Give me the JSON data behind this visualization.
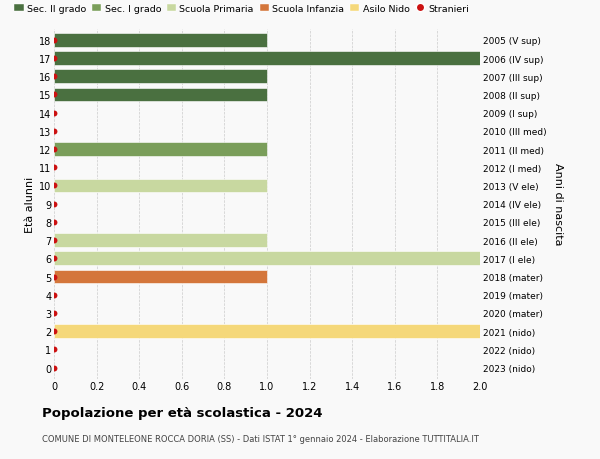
{
  "ages": [
    0,
    1,
    2,
    3,
    4,
    5,
    6,
    7,
    8,
    9,
    10,
    11,
    12,
    13,
    14,
    15,
    16,
    17,
    18
  ],
  "bar_values": [
    0,
    0,
    2,
    0,
    0,
    1,
    2,
    1,
    0,
    0,
    1,
    0,
    1,
    0,
    0,
    1,
    1,
    2,
    1
  ],
  "bar_colors": [
    "#ffffff",
    "#ffffff",
    "#f5d87a",
    "#ffffff",
    "#ffffff",
    "#d4763b",
    "#c8d8a0",
    "#c8d8a0",
    "#ffffff",
    "#ffffff",
    "#c8d8a0",
    "#ffffff",
    "#7a9e5a",
    "#ffffff",
    "#ffffff",
    "#4a7040",
    "#4a7040",
    "#4a7040",
    "#4a7040"
  ],
  "stranieri_dots": [
    0,
    1,
    2,
    3,
    4,
    5,
    6,
    7,
    8,
    9,
    10,
    11,
    12,
    13,
    14,
    15,
    16,
    17,
    18
  ],
  "right_labels": [
    "2023 (nido)",
    "2022 (nido)",
    "2021 (nido)",
    "2020 (mater)",
    "2019 (mater)",
    "2018 (mater)",
    "2017 (I ele)",
    "2016 (II ele)",
    "2015 (III ele)",
    "2014 (IV ele)",
    "2013 (V ele)",
    "2012 (I med)",
    "2011 (II med)",
    "2010 (III med)",
    "2009 (I sup)",
    "2008 (II sup)",
    "2007 (III sup)",
    "2006 (IV sup)",
    "2005 (V sup)"
  ],
  "xlim": [
    0,
    2.0
  ],
  "xticks": [
    0,
    0.2,
    0.4,
    0.6,
    0.8,
    1.0,
    1.2,
    1.4,
    1.6,
    1.8,
    2.0
  ],
  "ylabel": "Età alunni",
  "right_ylabel": "Anni di nascita",
  "title": "Popolazione per età scolastica - 2024",
  "subtitle": "COMUNE DI MONTELEONE ROCCA DORIA (SS) - Dati ISTAT 1° gennaio 2024 - Elaborazione TUTTITALIA.IT",
  "legend_labels": [
    "Sec. II grado",
    "Sec. I grado",
    "Scuola Primaria",
    "Scuola Infanzia",
    "Asilo Nido",
    "Stranieri"
  ],
  "legend_colors": [
    "#4a7040",
    "#7a9e5a",
    "#c8d8a0",
    "#d4763b",
    "#f5d87a",
    "#cc1111"
  ],
  "bar_height": 0.75,
  "background_color": "#f9f9f9",
  "dot_color": "#cc1111",
  "dot_size": 18,
  "grid_color": "#cccccc"
}
